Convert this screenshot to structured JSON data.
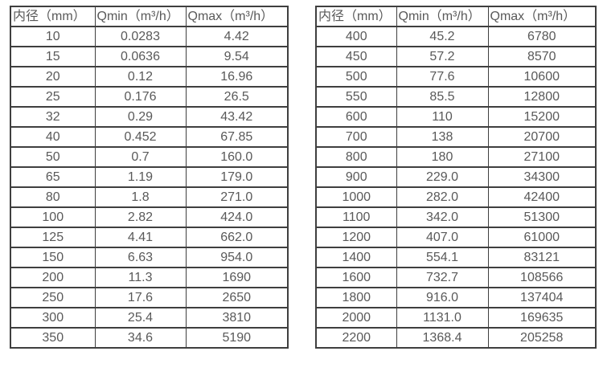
{
  "page": {
    "background": "#ffffff"
  },
  "colors": {
    "border": "#3f3f3f",
    "text": "#595959"
  },
  "tables": [
    {
      "name": "flow-table-small-diameters",
      "headers": [
        "内径（mm）",
        "Qmin（m³/h）",
        "Qmax（m³/h）"
      ],
      "rows": [
        [
          "10",
          "0.0283",
          "4.42"
        ],
        [
          "15",
          "0.0636",
          "9.54"
        ],
        [
          "20",
          "0.12",
          "16.96"
        ],
        [
          "25",
          "0.176",
          "26.5"
        ],
        [
          "32",
          "0.29",
          "43.42"
        ],
        [
          "40",
          "0.452",
          "67.85"
        ],
        [
          "50",
          "0.7",
          "160.0"
        ],
        [
          "65",
          "1.19",
          "179.0"
        ],
        [
          "80",
          "1.8",
          "271.0"
        ],
        [
          "100",
          "2.82",
          "424.0"
        ],
        [
          "125",
          "4.41",
          "662.0"
        ],
        [
          "150",
          "6.63",
          "954.0"
        ],
        [
          "200",
          "11.3",
          "1690"
        ],
        [
          "250",
          "17.6",
          "2650"
        ],
        [
          "300",
          "25.4",
          "3810"
        ],
        [
          "350",
          "34.6",
          "5190"
        ]
      ]
    },
    {
      "name": "flow-table-large-diameters",
      "headers": [
        "内径（mm）",
        "Qmin（m³/h）",
        "Qmax（m³/h）"
      ],
      "rows": [
        [
          "400",
          "45.2",
          "6780"
        ],
        [
          "450",
          "57.2",
          "8570"
        ],
        [
          "500",
          "77.6",
          "10600"
        ],
        [
          "550",
          "85.5",
          "12800"
        ],
        [
          "600",
          "110",
          "15200"
        ],
        [
          "700",
          "138",
          "20700"
        ],
        [
          "800",
          "180",
          "27100"
        ],
        [
          "900",
          "229.0",
          "34300"
        ],
        [
          "1000",
          "282.0",
          "42400"
        ],
        [
          "1100",
          "342.0",
          "51300"
        ],
        [
          "1200",
          "407.0",
          "61000"
        ],
        [
          "1400",
          "554.1",
          "83121"
        ],
        [
          "1600",
          "732.7",
          "108566"
        ],
        [
          "1800",
          "916.0",
          "137404"
        ],
        [
          "2000",
          "1131.0",
          "169635"
        ],
        [
          "2200",
          "1368.4",
          "205258"
        ]
      ]
    }
  ]
}
